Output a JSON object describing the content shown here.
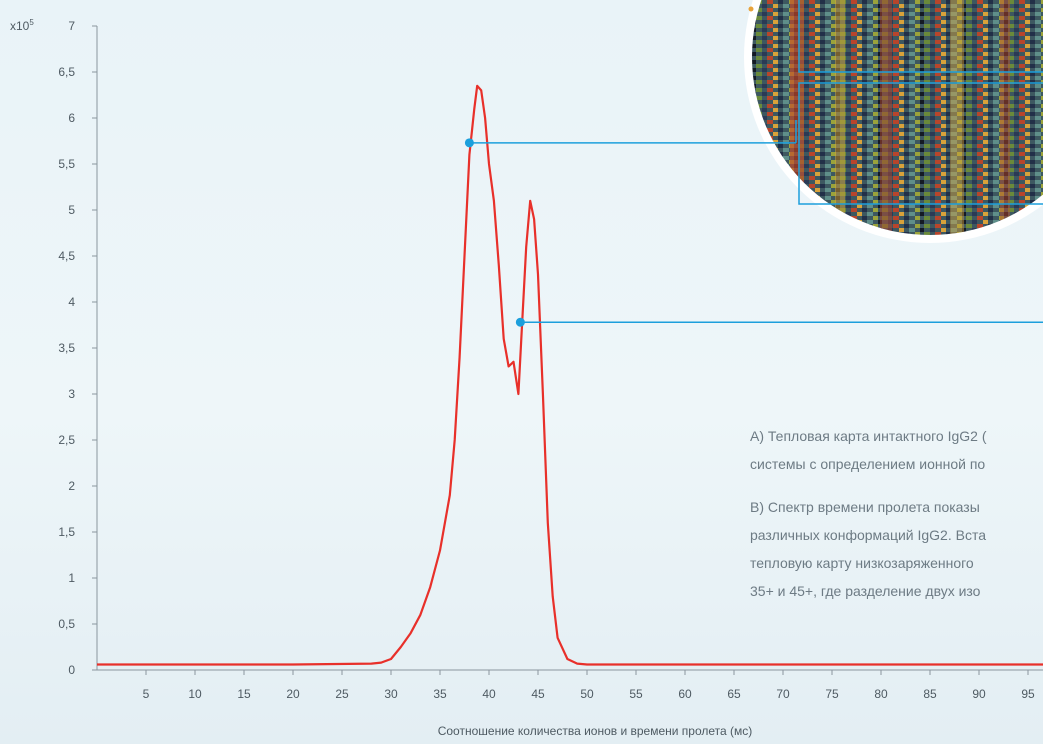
{
  "chart_data": {
    "type": "line",
    "y_multiplier_label": "x10",
    "y_multiplier_exp": "5",
    "xlabel": "Соотношение количества ионов и времени пролета (мс)",
    "xlim": [
      0,
      100
    ],
    "ylim": [
      0,
      7
    ],
    "x_ticks": [
      "5",
      "10",
      "15",
      "20",
      "25",
      "30",
      "35",
      "40",
      "45",
      "50",
      "55",
      "60",
      "65",
      "70",
      "75",
      "80",
      "85",
      "90",
      "95"
    ],
    "y_ticks": [
      "0",
      "0,5",
      "1",
      "1,5",
      "2",
      "2,5",
      "3",
      "3,5",
      "4",
      "4,5",
      "5",
      "5,5",
      "6",
      "6,5",
      "7"
    ],
    "colors": {
      "line": "#e8302a",
      "marker": "#1c9fdc",
      "axis": "#8a969e"
    },
    "series": [
      {
        "values": [
          [
            0,
            0.06
          ],
          [
            10,
            0.06
          ],
          [
            20,
            0.06
          ],
          [
            28,
            0.07
          ],
          [
            29,
            0.08
          ],
          [
            30,
            0.12
          ],
          [
            31,
            0.25
          ],
          [
            32,
            0.4
          ],
          [
            33,
            0.6
          ],
          [
            34,
            0.9
          ],
          [
            35,
            1.3
          ],
          [
            36,
            1.9
          ],
          [
            36.5,
            2.5
          ],
          [
            37,
            3.4
          ],
          [
            37.5,
            4.5
          ],
          [
            38,
            5.6
          ],
          [
            38.5,
            6.1
          ],
          [
            38.8,
            6.35
          ],
          [
            39.2,
            6.3
          ],
          [
            39.6,
            6.0
          ],
          [
            40,
            5.5
          ],
          [
            40.5,
            5.1
          ],
          [
            41,
            4.4
          ],
          [
            41.5,
            3.6
          ],
          [
            42,
            3.3
          ],
          [
            42.5,
            3.35
          ],
          [
            43,
            3.0
          ],
          [
            43.3,
            3.6
          ],
          [
            43.8,
            4.6
          ],
          [
            44.2,
            5.1
          ],
          [
            44.6,
            4.9
          ],
          [
            45,
            4.3
          ],
          [
            45.5,
            3.0
          ],
          [
            46,
            1.6
          ],
          [
            46.5,
            0.8
          ],
          [
            47,
            0.35
          ],
          [
            48,
            0.12
          ],
          [
            49,
            0.07
          ],
          [
            50,
            0.06
          ],
          [
            60,
            0.06
          ],
          [
            70,
            0.06
          ],
          [
            80,
            0.06
          ],
          [
            90,
            0.06
          ],
          [
            100,
            0.06
          ]
        ]
      }
    ],
    "markers": [
      {
        "x": 38,
        "y": 5.73
      },
      {
        "x": 43.2,
        "y": 3.78
      }
    ]
  },
  "captions": {
    "a_line1": "A) Тепловая карта интактного IgG2 (",
    "a_line2": "системы с определением ионной по",
    "b_line1": "B) Спектр времени пролета показы",
    "b_line2": "различных конформаций IgG2. Вста",
    "b_line3": "тепловую карту низкозаряженного",
    "b_line4": "35+ и 45+, где разделение двух изо"
  }
}
